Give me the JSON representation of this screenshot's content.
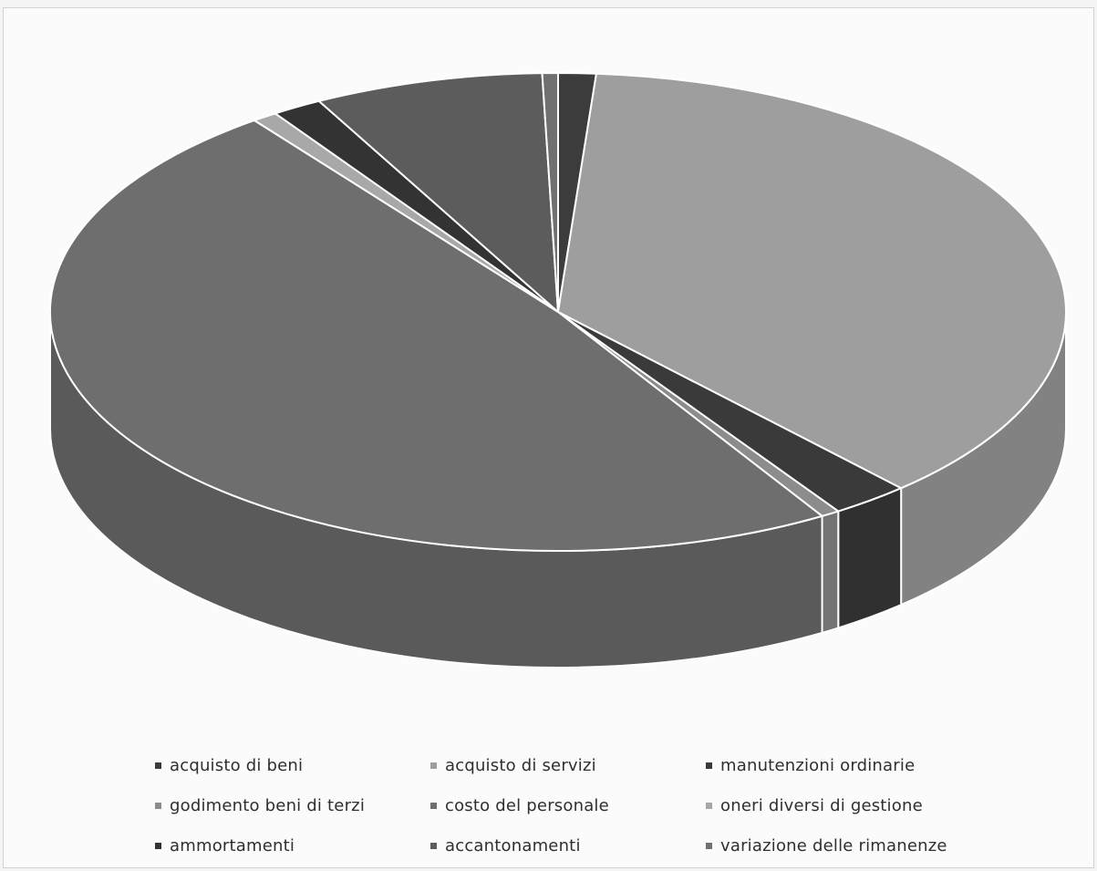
{
  "chart_data": {
    "type": "pie",
    "style": "3d",
    "categories": [
      "acquisto di beni",
      "acquisto di servizi",
      "manutenzioni ordinarie",
      "godimento beni di terzi",
      "costo del personale",
      "oneri diversi di gestione",
      "ammortamenti",
      "accantonamenti",
      "variazione delle rimanenze"
    ],
    "values": [
      1.2,
      37.0,
      2.5,
      0.6,
      48.5,
      0.8,
      1.6,
      7.3,
      0.5
    ],
    "colors": [
      "#3c3c3c",
      "#9e9e9e",
      "#3a3a3a",
      "#8c8c8c",
      "#6e6e6e",
      "#a8a8a8",
      "#333333",
      "#5c5c5c",
      "#707070"
    ],
    "legend_position": "bottom",
    "title": ""
  }
}
